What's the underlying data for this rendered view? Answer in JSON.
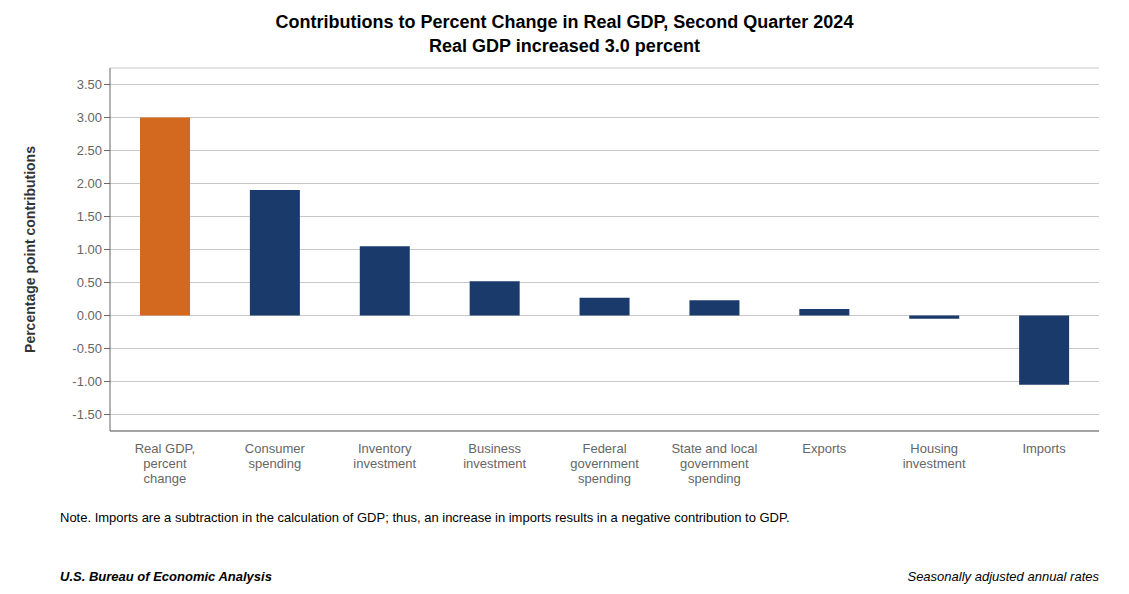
{
  "chart_data": {
    "type": "bar",
    "title": "Contributions to Percent Change in Real GDP, Second Quarter 2024",
    "subtitle": "Real GDP increased 3.0 percent",
    "categories": [
      "Real GDP,\npercent\nchange",
      "Consumer\nspending",
      "Inventory\ninvestment",
      "Business\ninvestment",
      "Federal\ngovernment\nspending",
      "State and local\ngovernment\nspending",
      "Exports",
      "Housing\ninvestment",
      "Imports"
    ],
    "values": [
      3.0,
      1.9,
      1.05,
      0.52,
      0.27,
      0.23,
      0.1,
      -0.05,
      -1.05
    ],
    "colors": [
      "#d2691e",
      "#1a3a6b",
      "#1a3a6b",
      "#1a3a6b",
      "#1a3a6b",
      "#1a3a6b",
      "#1a3a6b",
      "#1a3a6b",
      "#1a3a6b"
    ],
    "ylabel": "Percentage point contributions",
    "ylim": [
      -1.75,
      3.75
    ],
    "yticks": [
      {
        "value": -1.5,
        "label": "-1.50"
      },
      {
        "value": -1.0,
        "label": "-1.00"
      },
      {
        "value": -0.5,
        "label": "-0.50"
      },
      {
        "value": 0.0,
        "label": "0.00"
      },
      {
        "value": 0.5,
        "label": "0.50"
      },
      {
        "value": 1.0,
        "label": "1.00"
      },
      {
        "value": 1.5,
        "label": "1.50"
      },
      {
        "value": 2.0,
        "label": "2.00"
      },
      {
        "value": 2.5,
        "label": "2.50"
      },
      {
        "value": 3.0,
        "label": "3.00"
      },
      {
        "value": 3.5,
        "label": "3.50"
      }
    ],
    "grid": true,
    "annotations": [
      "Note. Imports are a subtraction in the calculation of GDP; thus, an increase in imports results in a negative contribution to GDP.",
      "U.S. Bureau of Economic Analysis",
      "Seasonally adjusted annual rates"
    ]
  }
}
